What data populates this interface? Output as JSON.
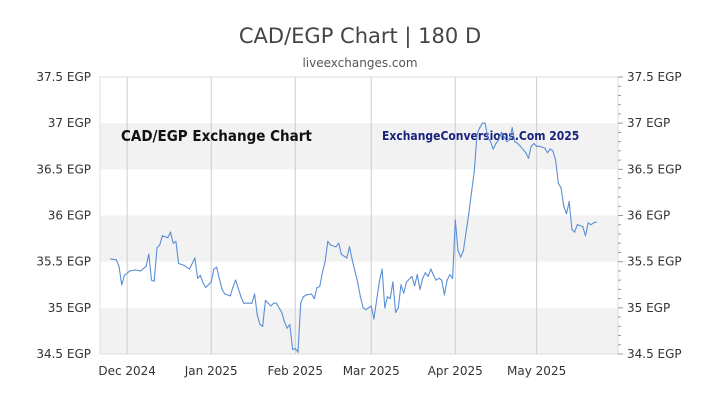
{
  "header": {
    "title": "CAD/EGP Chart | 180 D",
    "subtitle": "liveexchanges.com"
  },
  "overlay": {
    "left": "CAD/EGP Exchange Chart",
    "right": "ExchangeConversions.Com 2025"
  },
  "colors": {
    "line": "#5b8fd6",
    "band": "#f2f2f2",
    "grid": "#cccccc"
  },
  "chart_data": {
    "type": "line",
    "title": "CAD/EGP Chart | 180 D",
    "xlabel": "",
    "ylabel": "",
    "ylim": [
      34.5,
      37.5
    ],
    "xlim": [
      "2024-11-21",
      "2025-05-31"
    ],
    "y_ticks": [
      "37.5 EGP",
      "37 EGP",
      "36.5 EGP",
      "36 EGP",
      "35.5 EGP",
      "35 EGP",
      "34.5 EGP"
    ],
    "y_tick_values": [
      37.5,
      37.0,
      36.5,
      36.0,
      35.5,
      35.0,
      34.5
    ],
    "x_ticks": [
      {
        "label": "Dec 2024",
        "date": "2024-12-01"
      },
      {
        "label": "Jan 2025",
        "date": "2025-01-01"
      },
      {
        "label": "Feb 2025",
        "date": "2025-02-01"
      },
      {
        "label": "Mar 2025",
        "date": "2025-03-01"
      },
      {
        "label": "Apr 2025",
        "date": "2025-04-01"
      },
      {
        "label": "May 2025",
        "date": "2025-05-01"
      }
    ],
    "grid": true,
    "series": [
      {
        "values": [
          [
            "2024-11-25",
            35.53
          ],
          [
            "2024-11-27",
            35.52
          ],
          [
            "2024-11-28",
            35.45
          ],
          [
            "2024-11-29",
            35.25
          ],
          [
            "2024-11-30",
            35.35
          ],
          [
            "2024-12-02",
            35.4
          ],
          [
            "2024-12-04",
            35.41
          ],
          [
            "2024-12-06",
            35.4
          ],
          [
            "2024-12-08",
            35.45
          ],
          [
            "2024-12-09",
            35.58
          ],
          [
            "2024-12-10",
            35.3
          ],
          [
            "2024-12-11",
            35.29
          ],
          [
            "2024-12-12",
            35.65
          ],
          [
            "2024-12-13",
            35.68
          ],
          [
            "2024-12-14",
            35.78
          ],
          [
            "2024-12-16",
            35.76
          ],
          [
            "2024-12-17",
            35.82
          ],
          [
            "2024-12-18",
            35.7
          ],
          [
            "2024-12-19",
            35.72
          ],
          [
            "2024-12-20",
            35.48
          ],
          [
            "2024-12-22",
            35.46
          ],
          [
            "2024-12-24",
            35.42
          ],
          [
            "2024-12-26",
            35.54
          ],
          [
            "2024-12-27",
            35.32
          ],
          [
            "2024-12-28",
            35.35
          ],
          [
            "2024-12-29",
            35.27
          ],
          [
            "2024-12-30",
            35.22
          ],
          [
            "2025-01-01",
            35.28
          ],
          [
            "2025-01-02",
            35.42
          ],
          [
            "2025-01-03",
            35.44
          ],
          [
            "2025-01-04",
            35.32
          ],
          [
            "2025-01-05",
            35.2
          ],
          [
            "2025-01-06",
            35.15
          ],
          [
            "2025-01-08",
            35.13
          ],
          [
            "2025-01-09",
            35.22
          ],
          [
            "2025-01-10",
            35.3
          ],
          [
            "2025-01-12",
            35.12
          ],
          [
            "2025-01-13",
            35.05
          ],
          [
            "2025-01-16",
            35.05
          ],
          [
            "2025-01-17",
            35.15
          ],
          [
            "2025-01-18",
            34.92
          ],
          [
            "2025-01-19",
            34.82
          ],
          [
            "2025-01-20",
            34.8
          ],
          [
            "2025-01-21",
            35.08
          ],
          [
            "2025-01-22",
            35.05
          ],
          [
            "2025-01-23",
            35.02
          ],
          [
            "2025-01-24",
            35.05
          ],
          [
            "2025-01-25",
            35.05
          ],
          [
            "2025-01-27",
            34.95
          ],
          [
            "2025-01-28",
            34.85
          ],
          [
            "2025-01-29",
            34.78
          ],
          [
            "2025-01-30",
            34.82
          ],
          [
            "2025-01-31",
            34.55
          ],
          [
            "2025-02-01",
            34.56
          ],
          [
            "2025-02-02",
            34.52
          ],
          [
            "2025-02-03",
            35.05
          ],
          [
            "2025-02-04",
            35.12
          ],
          [
            "2025-02-05",
            35.14
          ],
          [
            "2025-02-07",
            35.15
          ],
          [
            "2025-02-08",
            35.1
          ],
          [
            "2025-02-09",
            35.22
          ],
          [
            "2025-02-10",
            35.23
          ],
          [
            "2025-02-11",
            35.38
          ],
          [
            "2025-02-12",
            35.5
          ],
          [
            "2025-02-13",
            35.72
          ],
          [
            "2025-02-14",
            35.68
          ],
          [
            "2025-02-16",
            35.66
          ],
          [
            "2025-02-17",
            35.7
          ],
          [
            "2025-02-18",
            35.58
          ],
          [
            "2025-02-19",
            35.56
          ],
          [
            "2025-02-20",
            35.54
          ],
          [
            "2025-02-21",
            35.66
          ],
          [
            "2025-02-22",
            35.52
          ],
          [
            "2025-02-23",
            35.4
          ],
          [
            "2025-02-24",
            35.28
          ],
          [
            "2025-02-25",
            35.12
          ],
          [
            "2025-02-26",
            35.0
          ],
          [
            "2025-02-27",
            34.98
          ],
          [
            "2025-02-28",
            35.0
          ],
          [
            "2025-03-01",
            35.02
          ],
          [
            "2025-03-02",
            34.88
          ],
          [
            "2025-03-03",
            35.08
          ],
          [
            "2025-03-04",
            35.28
          ],
          [
            "2025-03-05",
            35.42
          ],
          [
            "2025-03-06",
            35.0
          ],
          [
            "2025-03-07",
            35.12
          ],
          [
            "2025-03-08",
            35.1
          ],
          [
            "2025-03-09",
            35.28
          ],
          [
            "2025-03-10",
            34.95
          ],
          [
            "2025-03-11",
            35.0
          ],
          [
            "2025-03-12",
            35.25
          ],
          [
            "2025-03-13",
            35.16
          ],
          [
            "2025-03-14",
            35.28
          ],
          [
            "2025-03-16",
            35.34
          ],
          [
            "2025-03-17",
            35.24
          ],
          [
            "2025-03-18",
            35.36
          ],
          [
            "2025-03-19",
            35.2
          ],
          [
            "2025-03-20",
            35.32
          ],
          [
            "2025-03-21",
            35.38
          ],
          [
            "2025-03-22",
            35.34
          ],
          [
            "2025-03-23",
            35.42
          ],
          [
            "2025-03-24",
            35.35
          ],
          [
            "2025-03-25",
            35.3
          ],
          [
            "2025-03-26",
            35.32
          ],
          [
            "2025-03-27",
            35.3
          ],
          [
            "2025-03-28",
            35.14
          ],
          [
            "2025-03-29",
            35.3
          ],
          [
            "2025-03-30",
            35.36
          ],
          [
            "2025-03-31",
            35.32
          ],
          [
            "2025-04-01",
            35.95
          ],
          [
            "2025-04-02",
            35.62
          ],
          [
            "2025-04-03",
            35.55
          ],
          [
            "2025-04-04",
            35.62
          ],
          [
            "2025-04-06",
            36.02
          ],
          [
            "2025-04-07",
            36.25
          ],
          [
            "2025-04-08",
            36.48
          ],
          [
            "2025-04-09",
            36.88
          ],
          [
            "2025-04-10",
            36.95
          ],
          [
            "2025-04-11",
            37.0
          ],
          [
            "2025-04-12",
            37.0
          ],
          [
            "2025-04-13",
            36.85
          ],
          [
            "2025-04-14",
            36.8
          ],
          [
            "2025-04-15",
            36.72
          ],
          [
            "2025-04-16",
            36.78
          ],
          [
            "2025-04-17",
            36.82
          ],
          [
            "2025-04-18",
            36.9
          ],
          [
            "2025-04-19",
            36.85
          ],
          [
            "2025-04-20",
            36.8
          ],
          [
            "2025-04-21",
            36.82
          ],
          [
            "2025-04-22",
            36.95
          ],
          [
            "2025-04-23",
            36.8
          ],
          [
            "2025-04-24",
            36.78
          ],
          [
            "2025-04-25",
            36.75
          ],
          [
            "2025-04-27",
            36.68
          ],
          [
            "2025-04-28",
            36.62
          ],
          [
            "2025-04-29",
            36.75
          ],
          [
            "2025-04-30",
            36.78
          ],
          [
            "2025-05-01",
            36.75
          ],
          [
            "2025-05-02",
            36.75
          ],
          [
            "2025-05-04",
            36.73
          ],
          [
            "2025-05-05",
            36.68
          ],
          [
            "2025-05-06",
            36.72
          ],
          [
            "2025-05-07",
            36.7
          ],
          [
            "2025-05-08",
            36.6
          ],
          [
            "2025-05-09",
            36.35
          ],
          [
            "2025-05-10",
            36.3
          ],
          [
            "2025-05-11",
            36.1
          ],
          [
            "2025-05-12",
            36.02
          ],
          [
            "2025-05-13",
            36.15
          ],
          [
            "2025-05-14",
            35.85
          ],
          [
            "2025-05-15",
            35.82
          ],
          [
            "2025-05-16",
            35.9
          ],
          [
            "2025-05-18",
            35.88
          ],
          [
            "2025-05-19",
            35.78
          ],
          [
            "2025-05-20",
            35.92
          ],
          [
            "2025-05-21",
            35.9
          ],
          [
            "2025-05-22",
            35.92
          ],
          [
            "2025-05-23",
            35.93
          ]
        ]
      }
    ]
  }
}
